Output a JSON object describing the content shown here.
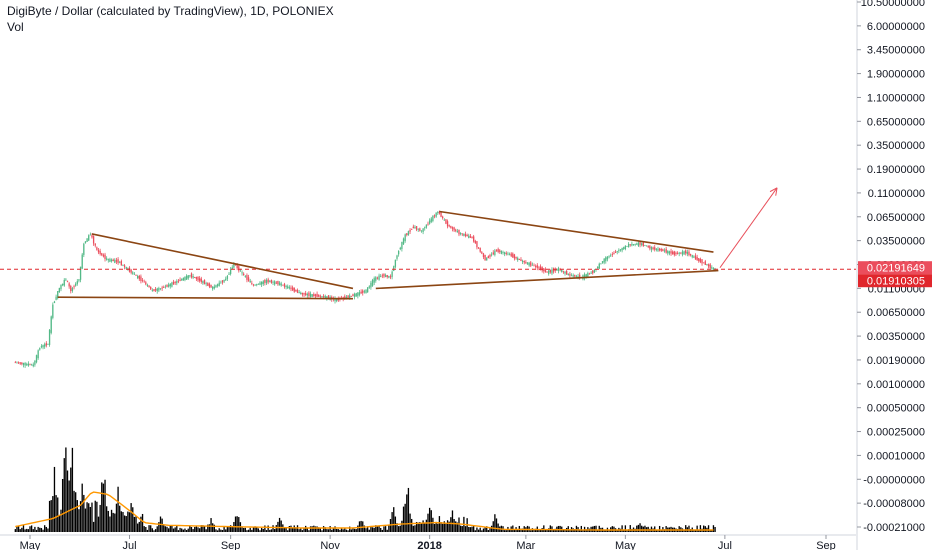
{
  "header": {
    "title": "DigiByte / Dollar (calculated by TradingView), 1D, POLONIEX",
    "volume_label": "Vol"
  },
  "colors": {
    "up": "#53b987",
    "down": "#eb4d5c",
    "trendline": "#8b4513",
    "dashed": "#e0262c",
    "arrow": "#e8505b",
    "volume_ma": "#ff9800",
    "volume": "#000000"
  },
  "chart_data": {
    "type": "candlestick",
    "title": "DigiByte / Dollar (calculated by TradingView), 1D, POLONIEX",
    "y_scale": "log",
    "y_tick_labels": [
      "10.50000000",
      "6.00000000",
      "3.45000000",
      "1.90000000",
      "1.10000000",
      "0.65000000",
      "0.35000000",
      "0.19000000",
      "0.11000000",
      "0.06500000",
      "0.03500000",
      "0.02000000",
      "0.01100000",
      "0.00650000",
      "0.00350000",
      "0.00190000",
      "0.00100000",
      "0.00050000",
      "0.00025000",
      "0.00010000",
      "-0.00000000",
      "-0.00008000",
      "-0.00021000"
    ],
    "x_tick_labels": [
      "May",
      "Jul",
      "Sep",
      "Nov",
      "2018",
      "Mar",
      "May",
      "Jul",
      "Sep"
    ],
    "price_labels": [
      {
        "value": "0.02191649",
        "color": "#eb4d5c"
      },
      {
        "value": "0.01910305",
        "color": "#e0262c"
      }
    ],
    "trendlines": [
      {
        "name": "triangle-1-upper",
        "from": [
          "2017-06-08",
          0.068
        ],
        "to": [
          "2017-11-15",
          0.0118
        ]
      },
      {
        "name": "triangle-1-lower",
        "from": [
          "2017-05-18",
          0.0089
        ],
        "to": [
          "2017-11-15",
          0.0085
        ]
      },
      {
        "name": "triangle-2-upper",
        "from": [
          "2018-01-07",
          0.14
        ],
        "to": [
          "2018-06-24",
          0.038
        ]
      },
      {
        "name": "triangle-2-lower",
        "from": [
          "2017-11-29",
          0.0118
        ],
        "to": [
          "2018-06-27",
          0.021
        ]
      }
    ],
    "projection_arrow": {
      "from": [
        "2018-06-28",
        0.023
      ],
      "to": [
        "2018-08-02",
        0.3
      ]
    },
    "dashed_level": 0.0219,
    "price_path": [
      [
        "2017-04-22",
        0.0011
      ],
      [
        "2017-05-04",
        0.001
      ],
      [
        "2017-05-08",
        0.0018
      ],
      [
        "2017-05-13",
        0.002
      ],
      [
        "2017-05-16",
        0.007
      ],
      [
        "2017-05-20",
        0.012
      ],
      [
        "2017-05-24",
        0.016
      ],
      [
        "2017-05-27",
        0.011
      ],
      [
        "2017-06-01",
        0.016
      ],
      [
        "2017-06-04",
        0.05
      ],
      [
        "2017-06-08",
        0.068
      ],
      [
        "2017-06-12",
        0.04
      ],
      [
        "2017-06-18",
        0.03
      ],
      [
        "2017-06-25",
        0.028
      ],
      [
        "2017-07-03",
        0.02
      ],
      [
        "2017-07-10",
        0.015
      ],
      [
        "2017-07-16",
        0.011
      ],
      [
        "2017-07-22",
        0.012
      ],
      [
        "2017-08-01",
        0.015
      ],
      [
        "2017-08-08",
        0.018
      ],
      [
        "2017-08-15",
        0.015
      ],
      [
        "2017-08-22",
        0.012
      ],
      [
        "2017-08-30",
        0.016
      ],
      [
        "2017-09-04",
        0.026
      ],
      [
        "2017-09-10",
        0.018
      ],
      [
        "2017-09-16",
        0.013
      ],
      [
        "2017-09-24",
        0.015
      ],
      [
        "2017-10-01",
        0.014
      ],
      [
        "2017-10-08",
        0.012
      ],
      [
        "2017-10-15",
        0.01
      ],
      [
        "2017-10-22",
        0.0095
      ],
      [
        "2017-10-30",
        0.009
      ],
      [
        "2017-11-06",
        0.0082
      ],
      [
        "2017-11-13",
        0.009
      ],
      [
        "2017-11-18",
        0.0098
      ],
      [
        "2017-11-24",
        0.011
      ],
      [
        "2017-11-29",
        0.016
      ],
      [
        "2017-12-04",
        0.018
      ],
      [
        "2017-12-09",
        0.017
      ],
      [
        "2017-12-13",
        0.035
      ],
      [
        "2017-12-18",
        0.065
      ],
      [
        "2017-12-23",
        0.085
      ],
      [
        "2017-12-28",
        0.075
      ],
      [
        "2018-01-03",
        0.11
      ],
      [
        "2018-01-07",
        0.14
      ],
      [
        "2018-01-13",
        0.09
      ],
      [
        "2018-01-20",
        0.07
      ],
      [
        "2018-01-28",
        0.06
      ],
      [
        "2018-02-05",
        0.03
      ],
      [
        "2018-02-12",
        0.04
      ],
      [
        "2018-02-20",
        0.035
      ],
      [
        "2018-02-28",
        0.028
      ],
      [
        "2018-03-08",
        0.024
      ],
      [
        "2018-03-15",
        0.02
      ],
      [
        "2018-03-22",
        0.022
      ],
      [
        "2018-03-29",
        0.018
      ],
      [
        "2018-04-05",
        0.017
      ],
      [
        "2018-04-12",
        0.02
      ],
      [
        "2018-04-19",
        0.03
      ],
      [
        "2018-04-26",
        0.038
      ],
      [
        "2018-05-04",
        0.048
      ],
      [
        "2018-05-11",
        0.05
      ],
      [
        "2018-05-18",
        0.043
      ],
      [
        "2018-05-25",
        0.04
      ],
      [
        "2018-06-01",
        0.036
      ],
      [
        "2018-06-08",
        0.038
      ],
      [
        "2018-06-15",
        0.03
      ],
      [
        "2018-06-20",
        0.026
      ],
      [
        "2018-06-25",
        0.022
      ]
    ],
    "volume_spikes": [
      [
        "2017-05-16",
        0.55
      ],
      [
        "2017-05-23",
        1.0
      ],
      [
        "2017-05-27",
        0.65
      ],
      [
        "2017-06-02",
        0.5
      ],
      [
        "2017-06-06",
        0.35
      ],
      [
        "2017-06-15",
        0.55
      ],
      [
        "2017-06-24",
        0.35
      ],
      [
        "2017-07-02",
        0.25
      ],
      [
        "2017-07-20",
        0.14
      ],
      [
        "2017-08-20",
        0.12
      ],
      [
        "2017-09-05",
        0.18
      ],
      [
        "2017-10-01",
        0.12
      ],
      [
        "2017-11-20",
        0.12
      ],
      [
        "2017-12-10",
        0.2
      ],
      [
        "2017-12-18",
        0.45
      ],
      [
        "2018-01-01",
        0.3
      ],
      [
        "2018-01-15",
        0.2
      ],
      [
        "2018-02-10",
        0.14
      ],
      [
        "2018-05-10",
        0.1
      ]
    ],
    "volume_ma_path": [
      [
        "2017-04-22",
        0.04
      ],
      [
        "2017-05-15",
        0.1
      ],
      [
        "2017-06-01",
        0.2
      ],
      [
        "2017-06-08",
        0.3
      ],
      [
        "2017-06-18",
        0.28
      ],
      [
        "2017-07-01",
        0.16
      ],
      [
        "2017-07-10",
        0.07
      ],
      [
        "2017-07-25",
        0.05
      ],
      [
        "2017-09-01",
        0.04
      ],
      [
        "2017-10-15",
        0.03
      ],
      [
        "2017-11-15",
        0.03
      ],
      [
        "2017-12-15",
        0.06
      ],
      [
        "2018-01-05",
        0.07
      ],
      [
        "2018-01-20",
        0.06
      ],
      [
        "2018-02-15",
        0.02
      ],
      [
        "2018-04-15",
        0.015
      ],
      [
        "2018-06-27",
        0.015
      ]
    ]
  }
}
